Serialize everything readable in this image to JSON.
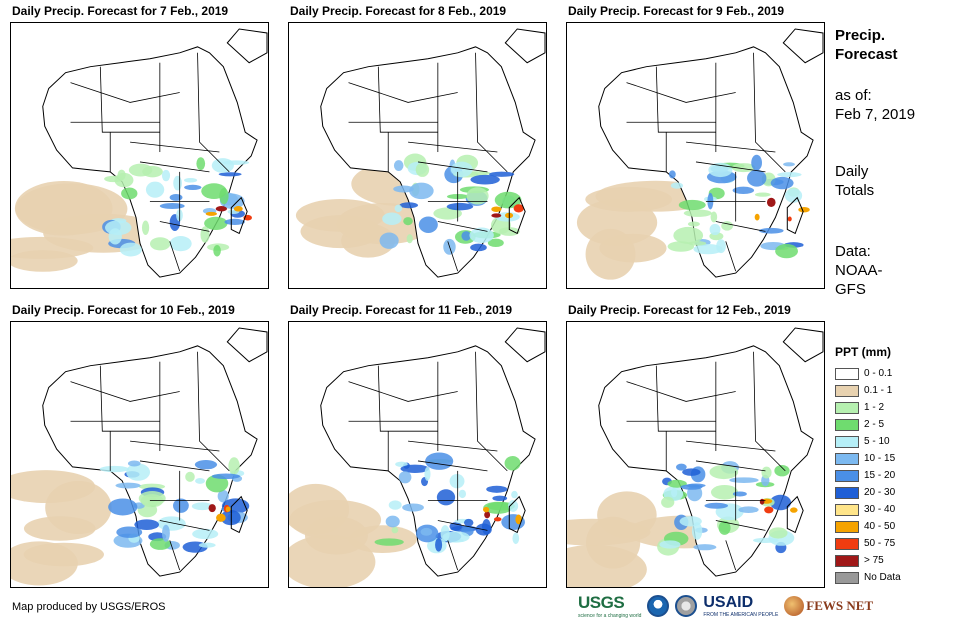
{
  "panels": [
    {
      "title": "Daily Precip. Forecast for 7 Feb., 2019"
    },
    {
      "title": "Daily Precip. Forecast for 8 Feb., 2019"
    },
    {
      "title": "Daily Precip. Forecast for 9 Feb., 2019"
    },
    {
      "title": "Daily Precip. Forecast for 10 Feb., 2019"
    },
    {
      "title": "Daily Precip. Forecast for 11 Feb., 2019"
    },
    {
      "title": "Daily Precip. Forecast for 12 Feb., 2019"
    }
  ],
  "side": {
    "heading_line1": "Precip.",
    "heading_line2": "Forecast",
    "asof_label": "as of:",
    "asof_date": "Feb 7, 2019",
    "totals_line1": "Daily",
    "totals_line2": "Totals",
    "data_line1": "Data:",
    "data_line2": "NOAA-",
    "data_line3": "GFS"
  },
  "legend": {
    "title": "PPT (mm)",
    "items": [
      {
        "label": "0 - 0.1",
        "color": "#ffffff"
      },
      {
        "label": "0.1 - 1",
        "color": "#e8d2b0"
      },
      {
        "label": "1 - 2",
        "color": "#b6f0b0"
      },
      {
        "label": "2 - 5",
        "color": "#6fdc6f"
      },
      {
        "label": "5 - 10",
        "color": "#b6eff7"
      },
      {
        "label": "10 - 15",
        "color": "#7cb9f0"
      },
      {
        "label": "15 - 20",
        "color": "#4a8fe6"
      },
      {
        "label": "20 - 30",
        "color": "#1f5fd6"
      },
      {
        "label": "30 - 40",
        "color": "#ffe58a"
      },
      {
        "label": "40 - 50",
        "color": "#f5a300"
      },
      {
        "label": "50 - 75",
        "color": "#f03c10"
      },
      {
        "label": "> 75",
        "color": "#a01818"
      },
      {
        "label": "No Data",
        "color": "#999999"
      }
    ]
  },
  "footer": {
    "credit": "Map produced by USGS/EROS"
  },
  "logos": {
    "usgs": "USGS",
    "usgs_tagline": "science for a changing world",
    "usaid": "USAID",
    "usaid_tagline": "FROM THE AMERICAN PEOPLE",
    "fews": "FEWS NET"
  }
}
